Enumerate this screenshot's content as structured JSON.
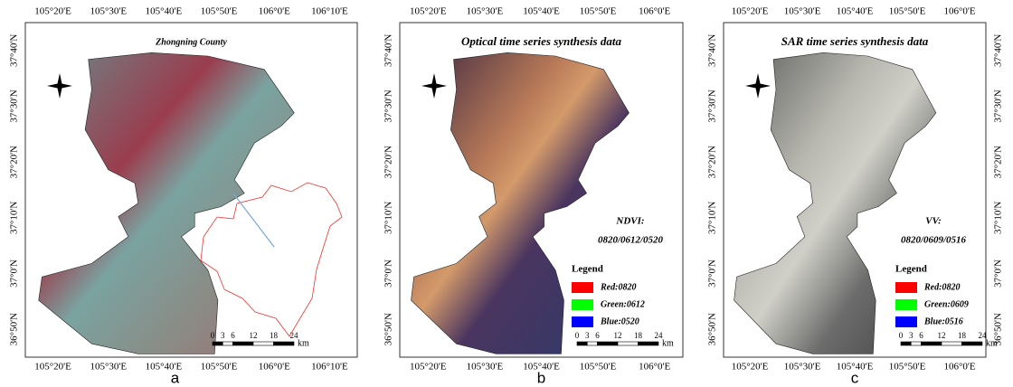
{
  "panels": [
    {
      "title": "Zhongning County",
      "letter": "a",
      "top_ticks": [
        "105°20'E",
        "105°30'E",
        "105°40'E",
        "105°50'E",
        "106°0'E",
        "106°10'E"
      ],
      "bottom_ticks": [
        "105°20'E",
        "105°30'E",
        "105°40'E",
        "105°50'E",
        "106°0'E",
        "106°10'E"
      ],
      "left_ticks": [
        "37°40'N",
        "37°30'N",
        "37°20'N",
        "37°10'N",
        "37°0'N",
        "36°50'N"
      ],
      "scale_labels": [
        0,
        3,
        6,
        12,
        18,
        24
      ],
      "scale_unit": "km"
    },
    {
      "title": "Optical time series synthesis data",
      "letter": "b",
      "top_ticks": [
        "105°20'E",
        "105°30'E",
        "105°40'E",
        "105°50'E",
        "106°0'E"
      ],
      "bottom_ticks": [
        "105°20'E",
        "105°30'E",
        "105°40'E",
        "105°50'E",
        "106°0'E"
      ],
      "left_ticks": [
        "37°40'N",
        "37°30'N",
        "37°20'N",
        "37°10'N",
        "37°0'N",
        "36°50'N"
      ],
      "scale_labels": [
        0,
        3,
        6,
        12,
        18,
        24
      ],
      "scale_unit": "km",
      "band": "NDVI:",
      "dates": "0820/0612/0520",
      "legend": {
        "title": "Legend",
        "items": [
          "Red:0820",
          "Green:0612",
          "Blue:0520"
        ]
      }
    },
    {
      "title": "SAR time series synthesis data",
      "letter": "c",
      "top_ticks": [
        "105°20'E",
        "105°30'E",
        "105°40'E",
        "105°50'E",
        "106°0'E"
      ],
      "bottom_ticks": [
        "105°20'E",
        "105°30'E",
        "105°40'E",
        "105°50'E",
        "106°0'E"
      ],
      "left_ticks": [
        "37°40'N",
        "37°30'N",
        "37°20'N",
        "37°10'N",
        "37°0'N",
        "36°50'N"
      ],
      "right_ticks": [
        "37°40'N",
        "37°30'N",
        "37°20'N",
        "37°10'N",
        "37°0'N",
        "36°50'N"
      ],
      "scale_labels": [
        0,
        3,
        6,
        12,
        18,
        24
      ],
      "scale_unit": "km",
      "band": "VV:",
      "dates": "0820/0609/0516",
      "legend": {
        "title": "Legend",
        "items": [
          "Red:0820",
          "Green:0609",
          "Blue:0516"
        ]
      }
    }
  ]
}
